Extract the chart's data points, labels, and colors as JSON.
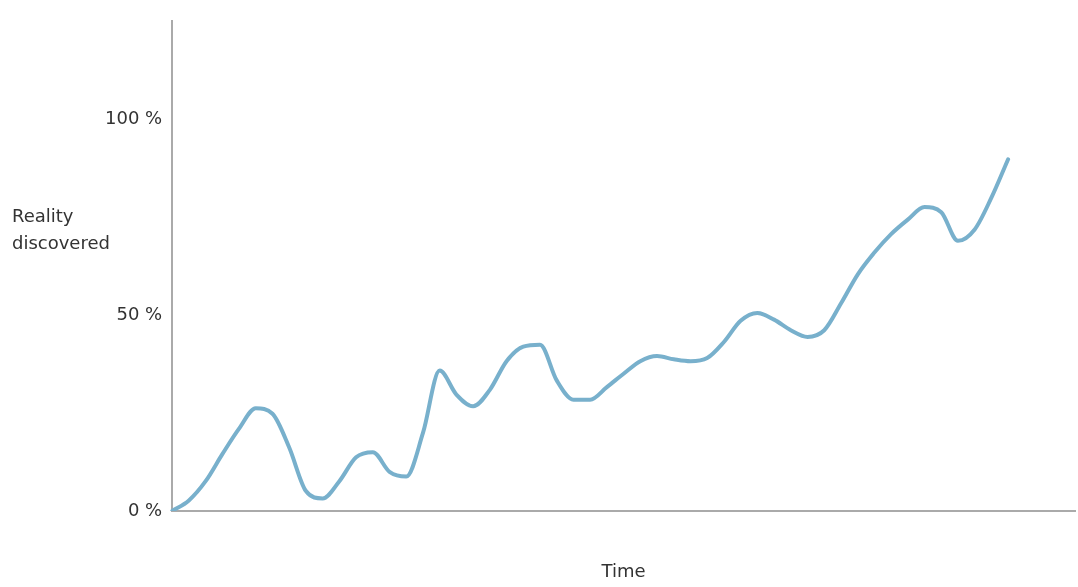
{
  "chart_data": {
    "type": "line",
    "xlabel": "Time",
    "ylabel": "Reality discovered",
    "categories": [
      null,
      null,
      null,
      null,
      null,
      null,
      null,
      null,
      null,
      null,
      null,
      null,
      null,
      null,
      null,
      null,
      null,
      null,
      null,
      null,
      null,
      null,
      null,
      null,
      null,
      null,
      null,
      null,
      null,
      null,
      null,
      null,
      null,
      null,
      null,
      null,
      null,
      null,
      null,
      null,
      null,
      null,
      null,
      null,
      null,
      null,
      null,
      null,
      null,
      null,
      null,
      null,
      null,
      null,
      null
    ],
    "series": [
      {
        "color": "#78b0cc",
        "values": [
          0,
          2.7,
          7.6,
          14.5,
          21,
          26.2,
          24.8,
          16.2,
          5.1,
          3.2,
          7.6,
          13.7,
          15,
          10,
          8.8,
          19.9,
          35.8,
          29.7,
          26.7,
          30.9,
          38.2,
          41.9,
          42.4,
          33.3,
          28.4,
          28.4,
          31.6,
          35,
          38.2,
          39.5,
          38.7,
          38.2,
          39,
          43.1,
          48.5,
          50.5,
          48.8,
          46.1,
          44.4,
          46.1,
          52.9,
          60.3,
          65.9,
          70.6,
          74.3,
          77.5,
          76.2,
          68.9,
          71.8,
          79.9,
          89.7,
          null,
          null,
          null,
          null
        ]
      }
    ],
    "ylim": [
      0,
      125
    ],
    "yticks": [
      {
        "value": 0,
        "label": "0 %"
      },
      {
        "value": 50,
        "label": "50 %"
      },
      {
        "value": 100,
        "label": "100 %"
      }
    ],
    "grid": false,
    "legend": false,
    "marker": "none",
    "line_style": "solid"
  }
}
